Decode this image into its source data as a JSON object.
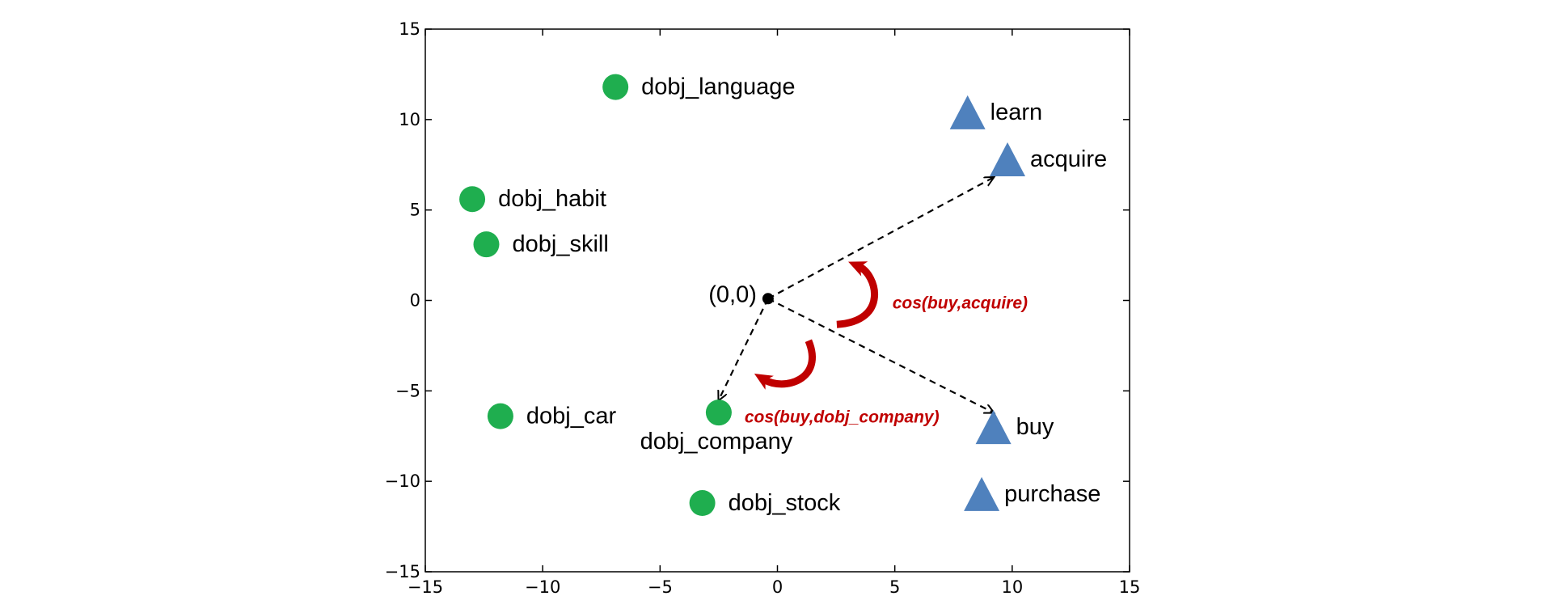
{
  "chart_data": {
    "type": "scatter",
    "title": "",
    "xlabel": "",
    "ylabel": "",
    "xlim": [
      -15,
      15
    ],
    "ylim": [
      -15,
      15
    ],
    "x_ticks": [
      -15,
      -10,
      -5,
      0,
      5,
      10,
      15
    ],
    "y_ticks": [
      -15,
      -10,
      -5,
      0,
      5,
      10,
      15
    ],
    "x_tick_labels": [
      "−15",
      "−10",
      "−5",
      "0",
      "5",
      "10",
      "15"
    ],
    "y_tick_labels": [
      "−15",
      "−10",
      "−5",
      "0",
      "5",
      "10",
      "15"
    ],
    "grid": false,
    "series": [
      {
        "marker": "circle",
        "color": "#1fae4f",
        "points": [
          {
            "label": "dobj_language",
            "x": -6.9,
            "y": 11.8
          },
          {
            "label": "dobj_habit",
            "x": -13.0,
            "y": 5.6
          },
          {
            "label": "dobj_skill",
            "x": -12.4,
            "y": 3.1
          },
          {
            "label": "dobj_car",
            "x": -11.8,
            "y": -6.4
          },
          {
            "label": "dobj_company",
            "x": -2.5,
            "y": -6.2
          },
          {
            "label": "dobj_stock",
            "x": -3.2,
            "y": -11.2
          }
        ]
      },
      {
        "marker": "triangle",
        "color": "#4f81bd",
        "points": [
          {
            "label": "learn",
            "x": 8.1,
            "y": 10.4
          },
          {
            "label": "acquire",
            "x": 9.8,
            "y": 7.8
          },
          {
            "label": "buy",
            "x": 9.2,
            "y": -7.0
          },
          {
            "label": "purchase",
            "x": 8.7,
            "y": -10.7
          }
        ]
      }
    ],
    "origin": {
      "label": "(0,0)",
      "x": -0.4,
      "y": 0.1
    },
    "arrows": [
      {
        "from": [
          -0.4,
          0.1
        ],
        "to": [
          9.2,
          6.8
        ]
      },
      {
        "from": [
          -0.4,
          0.1
        ],
        "to": [
          9.2,
          -6.2
        ]
      },
      {
        "from": [
          -0.4,
          0.1
        ],
        "to": [
          -2.5,
          -5.5
        ]
      }
    ],
    "annotations": [
      {
        "text": "cos(buy,acquire)",
        "color": "#c00000",
        "x": 4.9,
        "y": -0.1
      },
      {
        "text": "cos(buy,dobj_company)",
        "color": "#c00000",
        "x": -1.4,
        "y": -6.4
      }
    ]
  }
}
